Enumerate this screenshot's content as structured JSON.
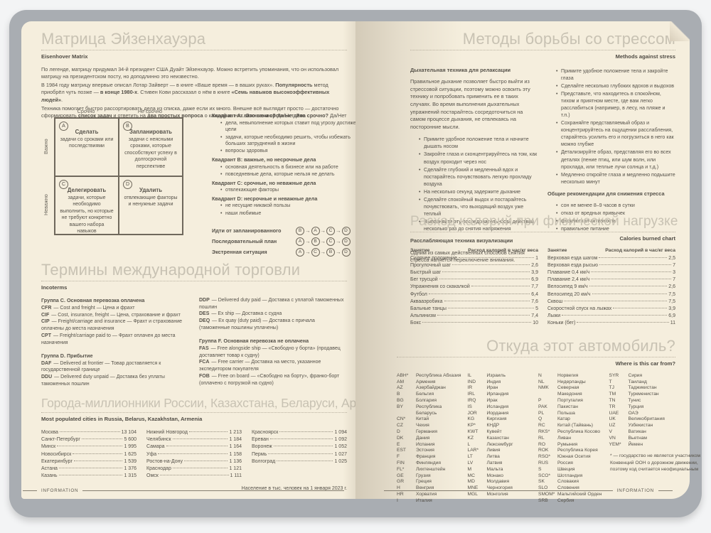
{
  "footer_label": "INFORMATION",
  "left_page": {
    "eisenhower": {
      "title": "Матрица Эйзенхауэра",
      "subtitle": "Eisenhover Matrix",
      "intro": [
        [
          {
            "t": "По легенде, матрицу придумал 34-й президент США Дуайт Эйзенхауэр. Можно встретить упоминания, что он использовал матрицу на президентском посту, но доподлинно это неизвестно."
          }
        ],
        [
          {
            "t": "В 1984 году матрицу впервые описал Лотар Зайверт — в книге «Ваше время — в ваших руках». "
          },
          {
            "t": "Популярность",
            "b": true
          },
          {
            "t": " метод приобрёл чуть позже — "
          },
          {
            "t": "в конце 1980-х",
            "b": true
          },
          {
            "t": ". Стивен Кови рассказал о нём в книге "
          },
          {
            "t": "«Семь навыков высокоэффективных людей»",
            "b": true
          },
          {
            "t": "."
          }
        ],
        [
          {
            "t": "Техника помогает быстро рассортировать дела из списка, даже если их много. Внешне всё выглядит просто — достаточно сформировать "
          },
          {
            "t": "список задач",
            "b": true
          },
          {
            "t": " и ответить на "
          },
          {
            "t": "два простых вопроса",
            "b": true
          },
          {
            "t": " о каждой из них. "
          },
          {
            "t": "Это важно?",
            "b": true
          },
          {
            "t": " Да/Нет. "
          },
          {
            "t": "Это срочно?",
            "b": true
          },
          {
            "t": " Да/Нет"
          }
        ]
      ],
      "matrix": {
        "col_headers": [
          "Срочно",
          "Не срочно"
        ],
        "row_headers": [
          "Важно",
          "Неважно"
        ],
        "quadrants": [
          {
            "letter": "A",
            "title": "Сделать",
            "desc": "задачи со сроками или последствиями"
          },
          {
            "letter": "B",
            "title": "Запланировать",
            "desc": "задачи с неясными сроками, которые способствуют успеху в долгосрочной перспективе"
          },
          {
            "letter": "C",
            "title": "Делегировать",
            "desc": "задачи, которые необходимо выполнить, но которые не требуют конкретно вашего набора навыков"
          },
          {
            "letter": "D",
            "title": "Удалить",
            "desc": "отвлекающие факторы и ненужные задачи"
          }
        ]
      },
      "quadrant_details": [
        {
          "heading": "Квадрант A: важные и срочные дела",
          "items": [
            "дела, невыполнение которых ставит под угрозу достижение цели",
            "задачи, которые необходимо решить, чтобы избежать больших затруднений в жизни",
            "вопросы здоровья"
          ]
        },
        {
          "heading": "Квадрант B: важные, но несрочные дела",
          "items": [
            "основная деятельность в бизнесе или на работе",
            "повседневные дела, которые нельзя не делать"
          ]
        },
        {
          "heading": "Квадрант C: срочные, но неважные дела",
          "items": [
            "отвлекающие факторы"
          ]
        },
        {
          "heading": "Квадрант D: несрочные и неважные дела",
          "items": [
            "не несущие никакой пользы",
            "наши любимые"
          ]
        }
      ],
      "strategies": [
        {
          "label": "Идти от запланированного",
          "sequence": [
            "B",
            "A",
            "C",
            "D"
          ]
        },
        {
          "label": "Последовательный план",
          "sequence": [
            "A",
            "B",
            "C",
            "D"
          ]
        },
        {
          "label": "Экстренная ситуация",
          "sequence": [
            "A",
            "C",
            "B",
            "D"
          ]
        }
      ]
    },
    "incoterms": {
      "title": "Термины международной торговли",
      "subtitle": "Incoterms",
      "left_column": [
        {
          "heading": "Группа C. Основная перевозка оплачена",
          "terms": [
            {
              "code": "CFR",
              "rest": "— Cost and freight — Цена и фрахт"
            },
            {
              "code": "CIF",
              "rest": "— Cost, insurance, freight — Цена, страхование и фрахт"
            },
            {
              "code": "CIP",
              "rest": "— Freight/carriage and insurance — Фрахт и страхование оплачены до места назначения"
            },
            {
              "code": "CPT",
              "rest": "— Freight/carriage paid to — Фрахт оплачен до места назначения"
            }
          ]
        },
        {
          "heading": "Группа D. Прибытие",
          "terms": [
            {
              "code": "DAF",
              "rest": "— Delivered at frontier — Товар доставляется к государственной границе"
            },
            {
              "code": "DDU",
              "rest": "— Delivered duty unpaid — Доставка без уплаты таможенных пошлин"
            }
          ]
        }
      ],
      "right_column": [
        {
          "heading": "",
          "terms": [
            {
              "code": "DDP",
              "rest": "— Delivered duty paid — Доставка с уплатой таможенных пошлин"
            },
            {
              "code": "DES",
              "rest": "— Ex ship — Доставка с судна"
            },
            {
              "code": "DEQ",
              "rest": "— Ex quay (duty paid) — Доставка с причала (таможенные пошлины уплачены)"
            }
          ]
        },
        {
          "heading": "Группа F. Основная перевозка не оплачена",
          "terms": [
            {
              "code": "FAS",
              "rest": "— Free alongside ship — «Свободно у борта» (продавец доставляет товар к судну)"
            },
            {
              "code": "FCA",
              "rest": "— Free carrier — Доставка на место, указанное экспедитором покупателя"
            },
            {
              "code": "FOB",
              "rest": "— Free on board — «Свободно на борту», франко-борт (оплачено с погрузкой на судно)"
            }
          ]
        }
      ]
    },
    "cities": {
      "title": "Города-миллионники России, Казахстана, Беларуси, Армении",
      "subtitle": "Most populated cities in Russia, Belarus, Kazakhstan, Armenia",
      "columns": [
        [
          {
            "name": "Москва",
            "value": "13 104"
          },
          {
            "name": "Санкт-Петербург",
            "value": "5 600"
          },
          {
            "name": "Минск",
            "value": "1 995"
          },
          {
            "name": "Новосибирск",
            "value": "1 625"
          },
          {
            "name": "Екатеринбург",
            "value": "1 539"
          },
          {
            "name": "Астана",
            "value": "1 376"
          },
          {
            "name": "Казань",
            "value": "1 315"
          }
        ],
        [
          {
            "name": "Нижний Новгород",
            "value": "1 213"
          },
          {
            "name": "Челябинск",
            "value": "1 184"
          },
          {
            "name": "Самара",
            "value": "1 164"
          },
          {
            "name": "Уфа",
            "value": "1 158"
          },
          {
            "name": "Ростов-на-Дону",
            "value": "1 136"
          },
          {
            "name": "Краснодар",
            "value": "1 121"
          },
          {
            "name": "Омск",
            "value": "1 111"
          }
        ],
        [
          {
            "name": "Красноярск",
            "value": "1 094"
          },
          {
            "name": "Ереван",
            "value": "1 092"
          },
          {
            "name": "Воронеж",
            "value": "1 052"
          },
          {
            "name": "Пермь",
            "value": "1 027"
          },
          {
            "name": "Волгоград",
            "value": "1 025"
          }
        ]
      ],
      "note": "Население в тыс. человек на 1 января 2023 г."
    }
  },
  "right_page": {
    "stress": {
      "title": "Методы борьбы со стрессом",
      "subtitle": "Methods against stress",
      "breathing_title": "Дыхательная техника для релаксации",
      "breathing_intro": "Правильное дыхание позволяет быстро выйти из стрессовой ситуации, поэтому можно освоить эту технику и попробовать применить ее в таких случаях. Во время выполнения дыхательных упражнений постарайтесь сосредоточиться на самом процессе дыхания, не отвлекаясь на посторонние мысли.",
      "breathing_steps": [
        "Примите удобное положение тела и начните дышать носом",
        "Закройте глаза и сконцентрируйтесь на том, как воздух проходит через нос",
        "Сделайте глубокий и медленный вдох и постарайтесь почувствовать легкую прохладу воздуха",
        "На несколько секунд задержите дыхание",
        "Сделайте спокойный выдох и постарайтесь почувствовать, что выходящий воздух уже теплый",
        "Выполняйте эту последовательность действий несколько раз до снятия напряжения"
      ],
      "visualization_title": "Расслабляющая техника визуализации",
      "visualization_intro": "Одним из самых действенных способов снятия стресса является переключение внимания.",
      "visualization_steps": [
        "Примите удобное положение тела и закройте глаза",
        "Сделайте несколько глубоких вдохов и выдохов",
        "Представьте, что находитесь в спокойном, тихом и приятном месте, где вам легко расслабиться (например, в лесу, на пляже и т.п.)",
        "Сохраняйте представляемый образ и концентрируйтесь на ощущении расслабления, старайтесь усилить его и погрузиться в него как можно глубже",
        "Детализируйте образ, представляя его во всех деталях (пение птиц, или шум волн, или прохлада, или теплые лучи солнца и т.д.)",
        "Медленно откройте глаза и медленно подышите несколько минут"
      ],
      "general_title": "Общие рекомендации для снижения стресса",
      "general_items": [
        "сон не менее 8–9 часов в сутки",
        "отказ от вредных привычек",
        "физическая активность",
        "правильное питание"
      ]
    },
    "calories": {
      "title": "Расход калорий при физической нагрузке",
      "subtitle": "Calories burned chart",
      "header_activity": "Занятие",
      "header_rate": "Расход калорий в час/кг веса",
      "columns": [
        [
          {
            "name": "Сидячее положение",
            "value": "1"
          },
          {
            "name": "Прогулочный шаг",
            "value": "2,6"
          },
          {
            "name": "Быстрый шаг",
            "value": "3,9"
          },
          {
            "name": "Бег трусцой",
            "value": "6,9"
          },
          {
            "name": "Упражнения со скакалкой",
            "value": "7,7"
          },
          {
            "name": "Футбол",
            "value": "6,4"
          },
          {
            "name": "Аквааэробика",
            "value": "7,6"
          },
          {
            "name": "Бальные танцы",
            "value": "5"
          },
          {
            "name": "Альпинизм",
            "value": "7,4"
          },
          {
            "name": "Бокс",
            "value": "10"
          }
        ],
        [
          {
            "name": "Верховая езда шагом",
            "value": "2,5"
          },
          {
            "name": "Верховая езда рысью",
            "value": "7"
          },
          {
            "name": "Плавание 0,4 км/ч",
            "value": "3"
          },
          {
            "name": "Плавание 2,4 км/ч",
            "value": "7"
          },
          {
            "name": "Велосипед 9 км/ч",
            "value": "2,6"
          },
          {
            "name": "Велосипед 20 км/ч",
            "value": "7,5"
          },
          {
            "name": "Сквош",
            "value": "7,5"
          },
          {
            "name": "Скоростной спуск на лыжах",
            "value": "3,9"
          },
          {
            "name": "Лыжи",
            "value": "6,9"
          },
          {
            "name": "Коньки (бег)",
            "value": "11"
          }
        ]
      ]
    },
    "cars": {
      "title": "Откуда этот автомобиль?",
      "subtitle": "Where is this car from?",
      "columns": [
        [
          {
            "code": "ABH*",
            "country": "Республика Абхазия"
          },
          {
            "code": "AM",
            "country": "Армения"
          },
          {
            "code": "AZ",
            "country": "Азербайджан"
          },
          {
            "code": "B",
            "country": "Бельгия"
          },
          {
            "code": "BG",
            "country": "Болгария"
          },
          {
            "code": "BY",
            "country": "Республика Беларусь"
          },
          {
            "code": "CN*",
            "country": "Китай"
          },
          {
            "code": "CZ",
            "country": "Чехия"
          },
          {
            "code": "D",
            "country": "Германия"
          },
          {
            "code": "DK",
            "country": "Дания"
          },
          {
            "code": "E",
            "country": "Испания"
          },
          {
            "code": "EST",
            "country": "Эстония"
          },
          {
            "code": "F",
            "country": "Франция"
          },
          {
            "code": "FIN",
            "country": "Финляндия"
          },
          {
            "code": "FL*",
            "country": "Лихтенштейн"
          },
          {
            "code": "GE",
            "country": "Грузия"
          },
          {
            "code": "GR",
            "country": "Греция"
          },
          {
            "code": "H",
            "country": "Венгрия"
          },
          {
            "code": "HR",
            "country": "Хорватия"
          },
          {
            "code": "I",
            "country": "Италия"
          }
        ],
        [
          {
            "code": "IL",
            "country": "Израиль"
          },
          {
            "code": "IND",
            "country": "Индия"
          },
          {
            "code": "IR",
            "country": "Иран"
          },
          {
            "code": "IRL",
            "country": "Ирландия"
          },
          {
            "code": "IRQ",
            "country": "Ирак"
          },
          {
            "code": "IS",
            "country": "Исландия"
          },
          {
            "code": "JOR",
            "country": "Иордания"
          },
          {
            "code": "KG",
            "country": "Киргизия"
          },
          {
            "code": "KP*",
            "country": "КНДР"
          },
          {
            "code": "KWT",
            "country": "Кувейт"
          },
          {
            "code": "KZ",
            "country": "Казахстан"
          },
          {
            "code": "L",
            "country": "Люксембург"
          },
          {
            "code": "LAR*",
            "country": "Ливия"
          },
          {
            "code": "LT",
            "country": "Литва"
          },
          {
            "code": "LV",
            "country": "Латвия"
          },
          {
            "code": "M",
            "country": "Мальта"
          },
          {
            "code": "MC",
            "country": "Монако"
          },
          {
            "code": "MD",
            "country": "Молдавия"
          },
          {
            "code": "MNE",
            "country": "Черногория"
          },
          {
            "code": "MGL",
            "country": "Монголия"
          }
        ],
        [
          {
            "code": "N",
            "country": "Норвегия"
          },
          {
            "code": "NL",
            "country": "Нидерланды"
          },
          {
            "code": "NMK",
            "country": "Северная Македония"
          },
          {
            "code": "P",
            "country": "Португалия"
          },
          {
            "code": "PAK",
            "country": "Пакистан"
          },
          {
            "code": "PL",
            "country": "Польша"
          },
          {
            "code": "Q",
            "country": "Катар"
          },
          {
            "code": "RC",
            "country": "Китай (Тайвань)"
          },
          {
            "code": "RKS*",
            "country": "Республика Косово"
          },
          {
            "code": "RL",
            "country": "Ливан"
          },
          {
            "code": "RO",
            "country": "Румыния"
          },
          {
            "code": "ROK",
            "country": "Республика Корея"
          },
          {
            "code": "RSO*",
            "country": "Южная Осетия"
          },
          {
            "code": "RUS",
            "country": "Россия"
          },
          {
            "code": "S",
            "country": "Швеция"
          },
          {
            "code": "SCO*",
            "country": "Шотландия"
          },
          {
            "code": "SK",
            "country": "Словакия"
          },
          {
            "code": "SLO",
            "country": "Словения"
          },
          {
            "code": "SMOM*",
            "country": "Мальтийский Орден"
          },
          {
            "code": "SRB",
            "country": "Сербия"
          }
        ],
        [
          {
            "code": "SYR",
            "country": "Сирия"
          },
          {
            "code": "T",
            "country": "Таиланд"
          },
          {
            "code": "TJ",
            "country": "Таджикистан"
          },
          {
            "code": "TM",
            "country": "Туркменистан"
          },
          {
            "code": "TN",
            "country": "Тунис"
          },
          {
            "code": "TR",
            "country": "Турция"
          },
          {
            "code": "UAE",
            "country": "ОАЭ"
          },
          {
            "code": "UK",
            "country": "Великобритания"
          },
          {
            "code": "UZ",
            "country": "Узбекистан"
          },
          {
            "code": "V",
            "country": "Ватикан"
          },
          {
            "code": "VN",
            "country": "Вьетнам"
          },
          {
            "code": "YEM*",
            "country": "Йемен"
          }
        ]
      ],
      "footnote": "* — государство не является участником Конвенций ООН о дорожном движении, поэтому код считается неофициальным"
    }
  }
}
